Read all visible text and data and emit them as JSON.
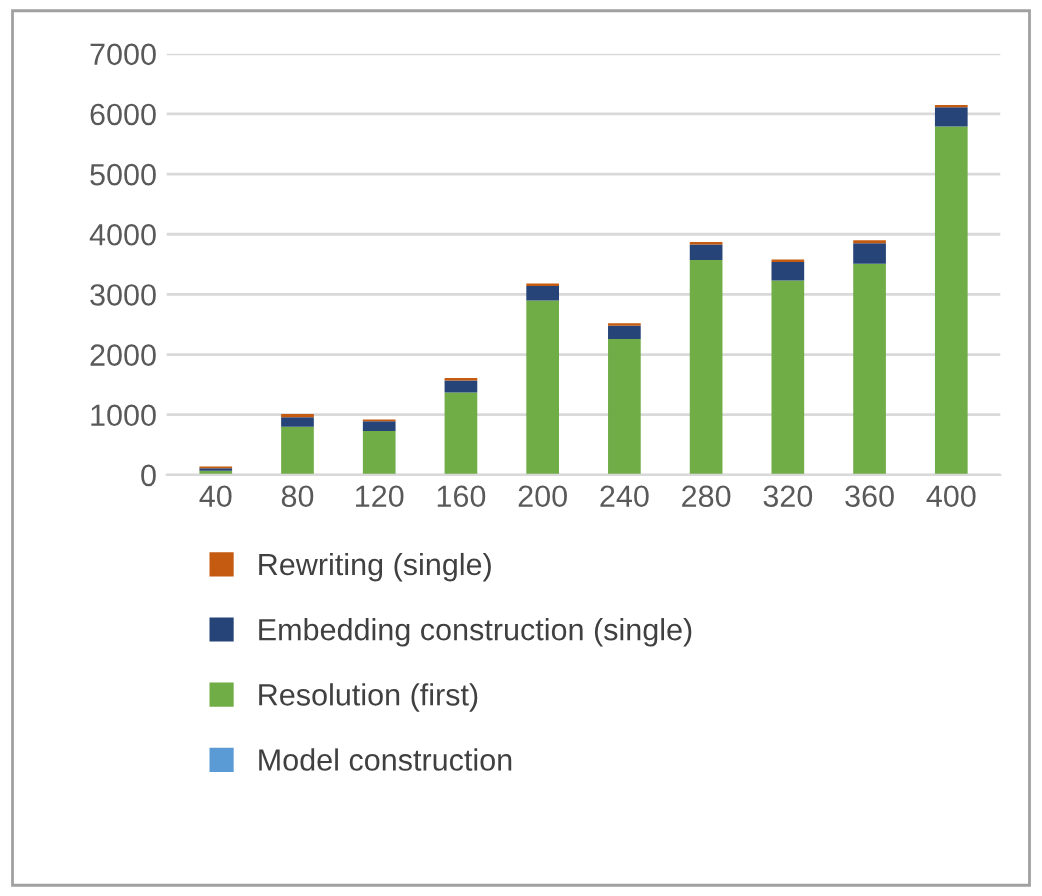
{
  "chart_data": {
    "type": "bar",
    "stacked": true,
    "categories": [
      "40",
      "80",
      "120",
      "160",
      "200",
      "240",
      "280",
      "320",
      "360",
      "400"
    ],
    "series": [
      {
        "name": "Model construction",
        "color": "#5b9bd5",
        "values": [
          null,
          null,
          null,
          null,
          null,
          null,
          null,
          null,
          null,
          null
        ]
      },
      {
        "name": "Resolution (first)",
        "color": "#70ad47",
        "values": [
          70,
          800,
          730,
          1370,
          2900,
          2260,
          3570,
          3230,
          3510,
          5790
        ]
      },
      {
        "name": "Embedding construction (single)",
        "color": "#264478",
        "values": [
          40,
          160,
          160,
          200,
          240,
          220,
          260,
          310,
          340,
          320
        ]
      },
      {
        "name": "Rewriting (single)",
        "color": "#c55a11",
        "values": [
          30,
          50,
          30,
          40,
          40,
          40,
          40,
          40,
          50,
          40
        ]
      }
    ],
    "ylim": [
      0,
      7000
    ],
    "yticks": [
      0,
      1000,
      2000,
      3000,
      4000,
      5000,
      6000,
      7000
    ],
    "grid": "y",
    "legend": "bottom"
  }
}
